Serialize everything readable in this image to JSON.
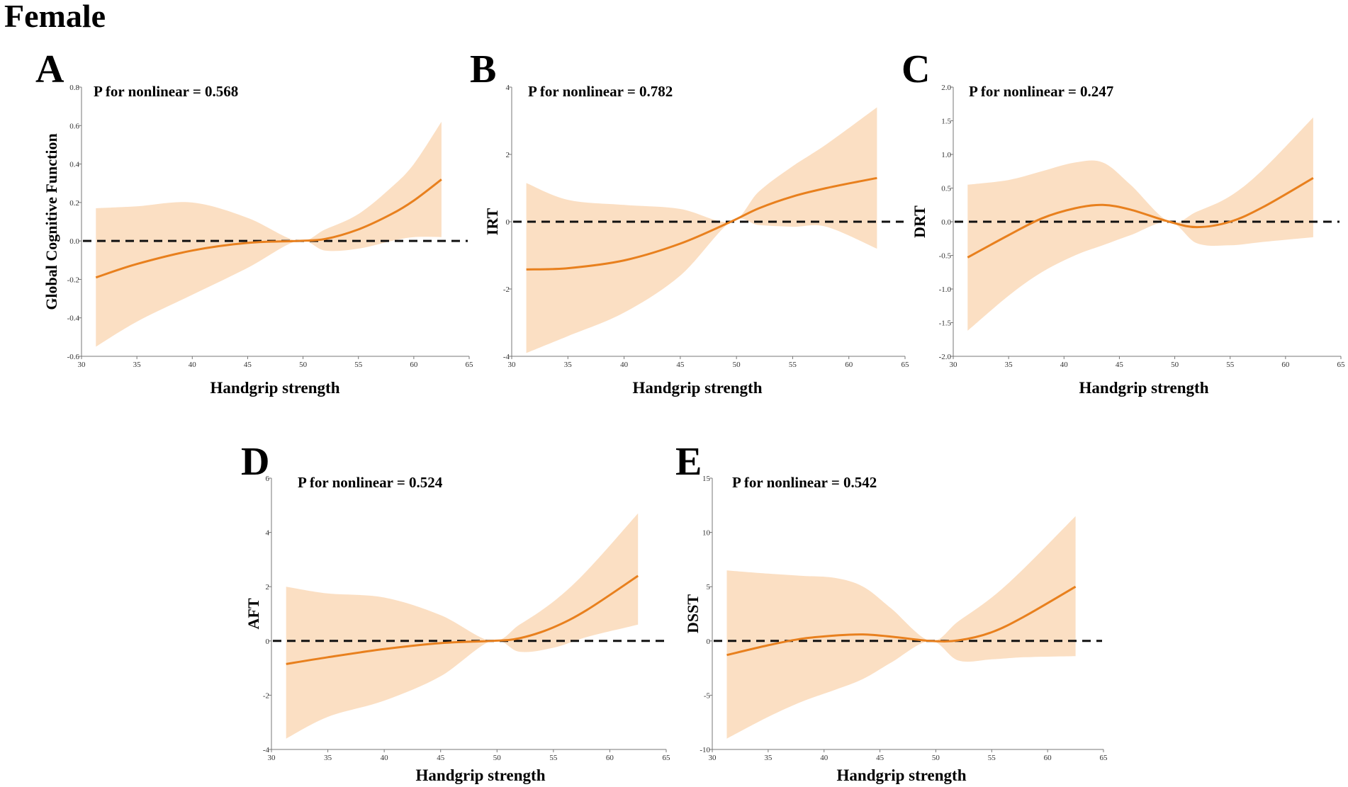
{
  "figure_title": "Female",
  "chart_data": [
    {
      "panel": "A",
      "type": "line",
      "title": "P for nonlinear  = 0.568",
      "xlabel": "Handgrip strength",
      "ylabel": "Global Cognitive Function",
      "xlim": [
        30,
        65
      ],
      "ylim": [
        -0.6,
        0.8
      ],
      "xticks": [
        30,
        35,
        40,
        45,
        50,
        55,
        60,
        65
      ],
      "yticks": [
        -0.6,
        -0.4,
        -0.2,
        0.0,
        0.2,
        0.4,
        0.6,
        0.8
      ],
      "ytick_labels": [
        "-0.6",
        "-0.4",
        "-0.2",
        "0.0",
        "0.2",
        "0.4",
        "0.6",
        "0.8"
      ],
      "reference_y": 0,
      "x": [
        31.3,
        35,
        40,
        45,
        49.5,
        52,
        55,
        58,
        60,
        62.5
      ],
      "y": [
        -0.19,
        -0.12,
        -0.05,
        -0.01,
        0.0,
        0.01,
        0.06,
        0.14,
        0.21,
        0.32
      ],
      "lower": [
        -0.55,
        -0.42,
        -0.28,
        -0.14,
        0.0,
        -0.05,
        -0.04,
        0.0,
        0.02,
        0.02
      ],
      "upper": [
        0.17,
        0.18,
        0.2,
        0.12,
        0.0,
        0.06,
        0.14,
        0.28,
        0.4,
        0.62
      ]
    },
    {
      "panel": "B",
      "type": "line",
      "title": "P for nonlinear  = 0.782",
      "xlabel": "Handgrip strength",
      "ylabel": "IRT",
      "xlim": [
        30,
        65
      ],
      "ylim": [
        -4,
        4
      ],
      "xticks": [
        30,
        35,
        40,
        45,
        50,
        55,
        60,
        65
      ],
      "yticks": [
        -4,
        -2,
        0,
        2,
        4
      ],
      "ytick_labels": [
        "-4",
        "-2",
        "0",
        "2",
        "4"
      ],
      "reference_y": 0,
      "x": [
        31.3,
        35,
        40,
        45,
        49.5,
        52,
        55,
        58,
        62.5
      ],
      "y": [
        -1.42,
        -1.38,
        -1.15,
        -0.65,
        0.0,
        0.4,
        0.75,
        1.0,
        1.3
      ],
      "lower": [
        -3.9,
        -3.4,
        -2.7,
        -1.6,
        0.0,
        -0.1,
        -0.15,
        -0.15,
        -0.8
      ],
      "upper": [
        1.15,
        0.65,
        0.5,
        0.38,
        0.0,
        0.9,
        1.65,
        2.3,
        3.4
      ]
    },
    {
      "panel": "C",
      "type": "line",
      "title": "P for nonlinear  = 0.247",
      "xlabel": "Handgrip strength",
      "ylabel": "DRT",
      "xlim": [
        30,
        65
      ],
      "ylim": [
        -2.0,
        2.0
      ],
      "xticks": [
        30,
        35,
        40,
        45,
        50,
        55,
        60,
        65
      ],
      "yticks": [
        -2.0,
        -1.5,
        -1.0,
        -0.5,
        0.0,
        0.5,
        1.0,
        1.5,
        2.0
      ],
      "ytick_labels": [
        "-2.0",
        "-1.5",
        "-1.0",
        "-0.5",
        "0.0",
        "0.5",
        "1.0",
        "1.5",
        "2.0"
      ],
      "reference_y": 0,
      "x": [
        31.3,
        35,
        38,
        41,
        43.5,
        46,
        49.5,
        52,
        55,
        58,
        62.5
      ],
      "y": [
        -0.53,
        -0.2,
        0.05,
        0.2,
        0.25,
        0.18,
        0.0,
        -0.08,
        0.0,
        0.22,
        0.65
      ],
      "lower": [
        -1.62,
        -1.1,
        -0.75,
        -0.5,
        -0.35,
        -0.2,
        0.0,
        -0.32,
        -0.35,
        -0.3,
        -0.23
      ],
      "upper": [
        0.55,
        0.62,
        0.75,
        0.88,
        0.88,
        0.55,
        0.0,
        0.15,
        0.38,
        0.78,
        1.55
      ]
    },
    {
      "panel": "D",
      "type": "line",
      "title": "P for nonlinear  = 0.524",
      "xlabel": "Handgrip strength",
      "ylabel": "AFT",
      "xlim": [
        30,
        65
      ],
      "ylim": [
        -4,
        6
      ],
      "xticks": [
        30,
        35,
        40,
        45,
        50,
        55,
        60,
        65
      ],
      "yticks": [
        -4,
        -2,
        0,
        2,
        4,
        6
      ],
      "ytick_labels": [
        "-4",
        "-2",
        "0",
        "2",
        "4",
        "6"
      ],
      "reference_y": 0,
      "x": [
        31.3,
        35,
        40,
        45,
        49.5,
        52,
        55,
        58,
        62.5
      ],
      "y": [
        -0.85,
        -0.6,
        -0.3,
        -0.08,
        0.0,
        0.1,
        0.5,
        1.15,
        2.4
      ],
      "lower": [
        -3.6,
        -2.8,
        -2.2,
        -1.3,
        0.0,
        -0.4,
        -0.25,
        0.15,
        0.6
      ],
      "upper": [
        2.0,
        1.75,
        1.6,
        0.95,
        0.0,
        0.6,
        1.45,
        2.6,
        4.7
      ]
    },
    {
      "panel": "E",
      "type": "line",
      "title": "P for nonlinear  = 0.542",
      "xlabel": "Handgrip strength",
      "ylabel": "DSST",
      "xlim": [
        30,
        65
      ],
      "ylim": [
        -10,
        15
      ],
      "xticks": [
        30,
        35,
        40,
        45,
        50,
        55,
        60,
        65
      ],
      "yticks": [
        -10,
        -5,
        0,
        5,
        10,
        15
      ],
      "ytick_labels": [
        "-10",
        "-5",
        "0",
        "5",
        "10",
        "15"
      ],
      "reference_y": 0,
      "x": [
        31.3,
        35,
        38,
        41,
        43.5,
        46,
        49.5,
        52,
        55,
        58,
        62.5
      ],
      "y": [
        -1.3,
        -0.4,
        0.2,
        0.5,
        0.6,
        0.4,
        0.0,
        0.05,
        0.8,
        2.3,
        5.0
      ],
      "lower": [
        -9.0,
        -7.0,
        -5.6,
        -4.5,
        -3.5,
        -2.0,
        0.0,
        -1.8,
        -1.7,
        -1.5,
        -1.4
      ],
      "upper": [
        6.5,
        6.2,
        6.0,
        5.8,
        5.0,
        3.0,
        0.0,
        1.8,
        4.0,
        6.8,
        11.5
      ]
    }
  ]
}
